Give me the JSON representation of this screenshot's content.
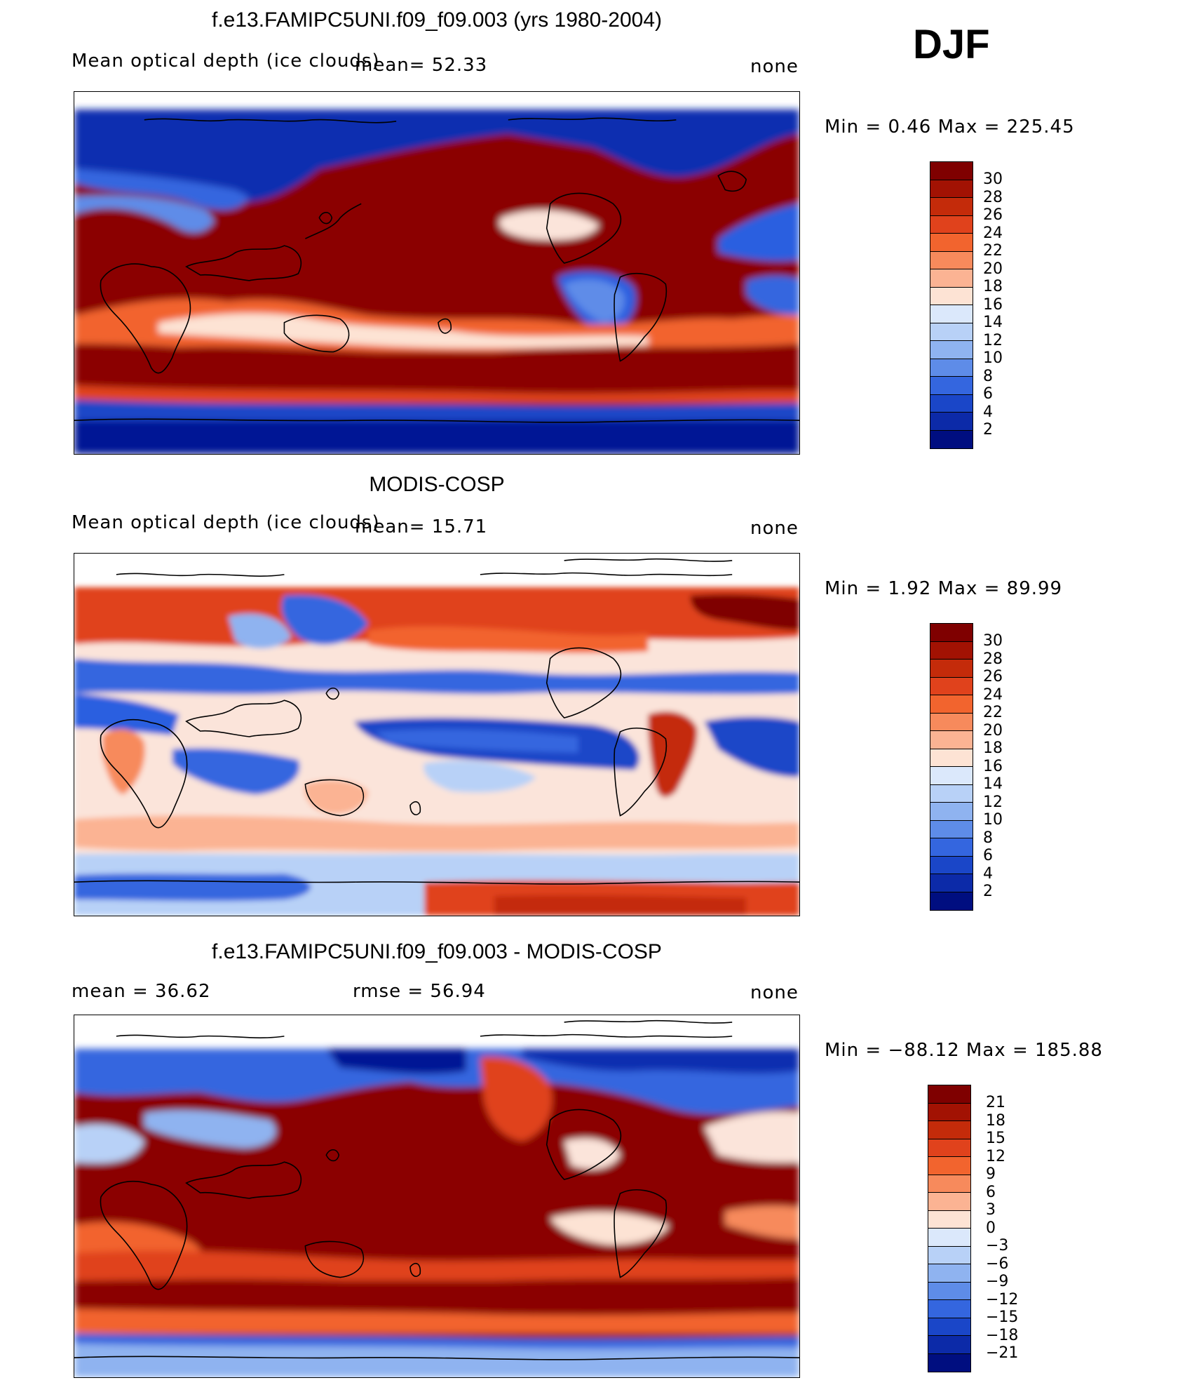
{
  "season": "DJF",
  "panels": [
    {
      "title": "f.e13.FAMIPC5UNI.f09_f09.003 (yrs 1980-2004)",
      "left_label": "Mean optical depth (ice clouds)",
      "center_label": "mean=   52.33",
      "right_label": "none",
      "min_max": "Min  =    0.46  Max  =  225.45",
      "colorbar": {
        "labels": [
          "30",
          "28",
          "26",
          "24",
          "22",
          "20",
          "18",
          "16",
          "14",
          "12",
          "10",
          "8",
          "6",
          "4",
          "2"
        ],
        "colors": [
          "#7f0000",
          "#a21203",
          "#c42b0a",
          "#e0421c",
          "#f2642e",
          "#f78a5c",
          "#fbb393",
          "#fde3d4",
          "#dbe8fb",
          "#b8d1f7",
          "#8fb3f0",
          "#5e8ce8",
          "#3466df",
          "#1a46c8",
          "#0c2aa8",
          "#000e80"
        ]
      }
    },
    {
      "title": "MODIS-COSP",
      "left_label": "Mean optical depth (ice clouds)",
      "center_label": "mean=   15.71",
      "right_label": "none",
      "min_max": "Min  =    1.92  Max  =   89.99",
      "colorbar": {
        "labels": [
          "30",
          "28",
          "26",
          "24",
          "22",
          "20",
          "18",
          "16",
          "14",
          "12",
          "10",
          "8",
          "6",
          "4",
          "2"
        ],
        "colors": [
          "#7f0000",
          "#a21203",
          "#c42b0a",
          "#e0421c",
          "#f2642e",
          "#f78a5c",
          "#fbb393",
          "#fde3d4",
          "#dbe8fb",
          "#b8d1f7",
          "#8fb3f0",
          "#5e8ce8",
          "#3466df",
          "#1a46c8",
          "#0c2aa8",
          "#000e80"
        ]
      }
    },
    {
      "title": "f.e13.FAMIPC5UNI.f09_f09.003 - MODIS-COSP",
      "left_label": "mean  =    36.62",
      "center_label": "rmse  =    56.94",
      "right_label": "none",
      "min_max": "Min  = −88.12  Max  =  185.88",
      "colorbar": {
        "labels": [
          "21",
          "18",
          "15",
          "12",
          "9",
          "6",
          "3",
          "0",
          "−3",
          "−6",
          "−9",
          "−12",
          "−15",
          "−18",
          "−21"
        ],
        "colors": [
          "#7f0000",
          "#a21203",
          "#c42b0a",
          "#e0421c",
          "#f2642e",
          "#f78a5c",
          "#fbb393",
          "#fde3d4",
          "#dbe8fb",
          "#b8d1f7",
          "#8fb3f0",
          "#5e8ce8",
          "#3466df",
          "#1a46c8",
          "#0c2aa8",
          "#000e80"
        ]
      }
    }
  ],
  "colors": {
    "dark_red": "#8b0000",
    "red": "#d83a12",
    "light": "#fbe4da",
    "light_blue": "#b8d1f7",
    "blue": "#2b5ee0",
    "dark_blue": "#001595",
    "coast": "#000000"
  }
}
